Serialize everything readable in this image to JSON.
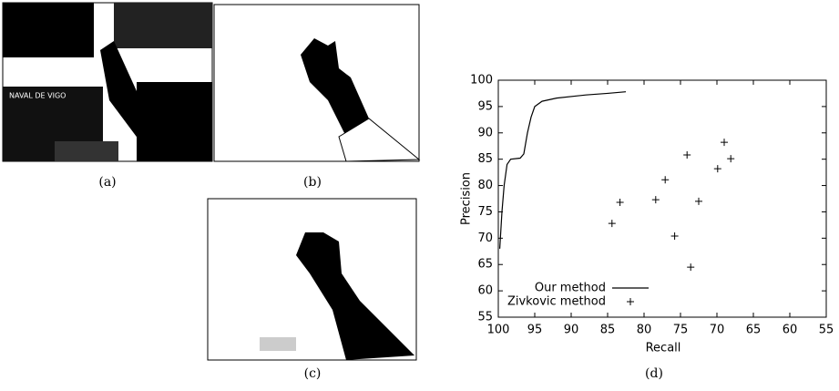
{
  "captions": [
    "(a)",
    "(b)",
    "(c)",
    "(d)"
  ],
  "chart_data": {
    "type": "line",
    "xlabel": "Recall",
    "ylabel": "Precision",
    "xlim": [
      100,
      55
    ],
    "xticks": [
      100,
      95,
      90,
      85,
      80,
      75,
      70,
      65,
      60,
      55
    ],
    "ylim": [
      55,
      100
    ],
    "yticks": [
      55,
      60,
      65,
      70,
      75,
      80,
      85,
      90,
      95,
      100
    ],
    "legend": "lower left",
    "series": [
      {
        "name": "Our method",
        "style": "line",
        "color": "#000000",
        "x": [
          99.8,
          99.5,
          99.2,
          98.8,
          98.3,
          97.0,
          96.5,
          96.0,
          95.5,
          95.0,
          94.0,
          92.0,
          88.0,
          85.0,
          82.5
        ],
        "values": [
          68,
          75,
          80,
          84,
          85,
          85.2,
          86,
          90,
          93,
          95,
          96,
          96.6,
          97.2,
          97.5,
          97.8
        ]
      },
      {
        "name": "Zivkovic method",
        "style": "points",
        "color": "#000000",
        "x": [
          84.4,
          83.3,
          78.4,
          77.1,
          75.8,
          74.1,
          69.0,
          72.5,
          69.9,
          68.1,
          73.6
        ],
        "values": [
          72.8,
          76.8,
          77.3,
          81.1,
          70.4,
          85.8,
          88.2,
          77.0,
          83.2,
          85.1,
          64.5
        ]
      }
    ]
  }
}
